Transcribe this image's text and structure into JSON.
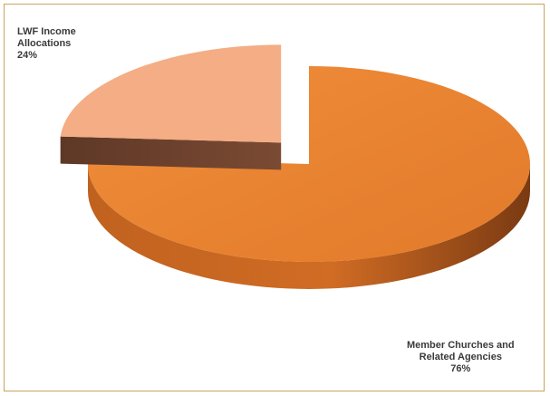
{
  "chart_data": {
    "type": "pie",
    "style": "3d-exploded",
    "slices": [
      {
        "name": "Member Churches and Related Agencies",
        "label_lines": [
          "Member Churches and",
          "Related Agencies"
        ],
        "value": 76,
        "value_label": "76%",
        "color": "#e8832f",
        "side_color": "#b8571c"
      },
      {
        "name": "LWF Income Allocations",
        "label_lines": [
          "LWF Income",
          "Allocations"
        ],
        "value": 24,
        "value_label": "24%",
        "color": "#f4ad84",
        "side_color": "#6b3f2a"
      }
    ]
  },
  "colors": {
    "frame_border": "#c9a45a",
    "label_text": "#3a3a3a"
  }
}
